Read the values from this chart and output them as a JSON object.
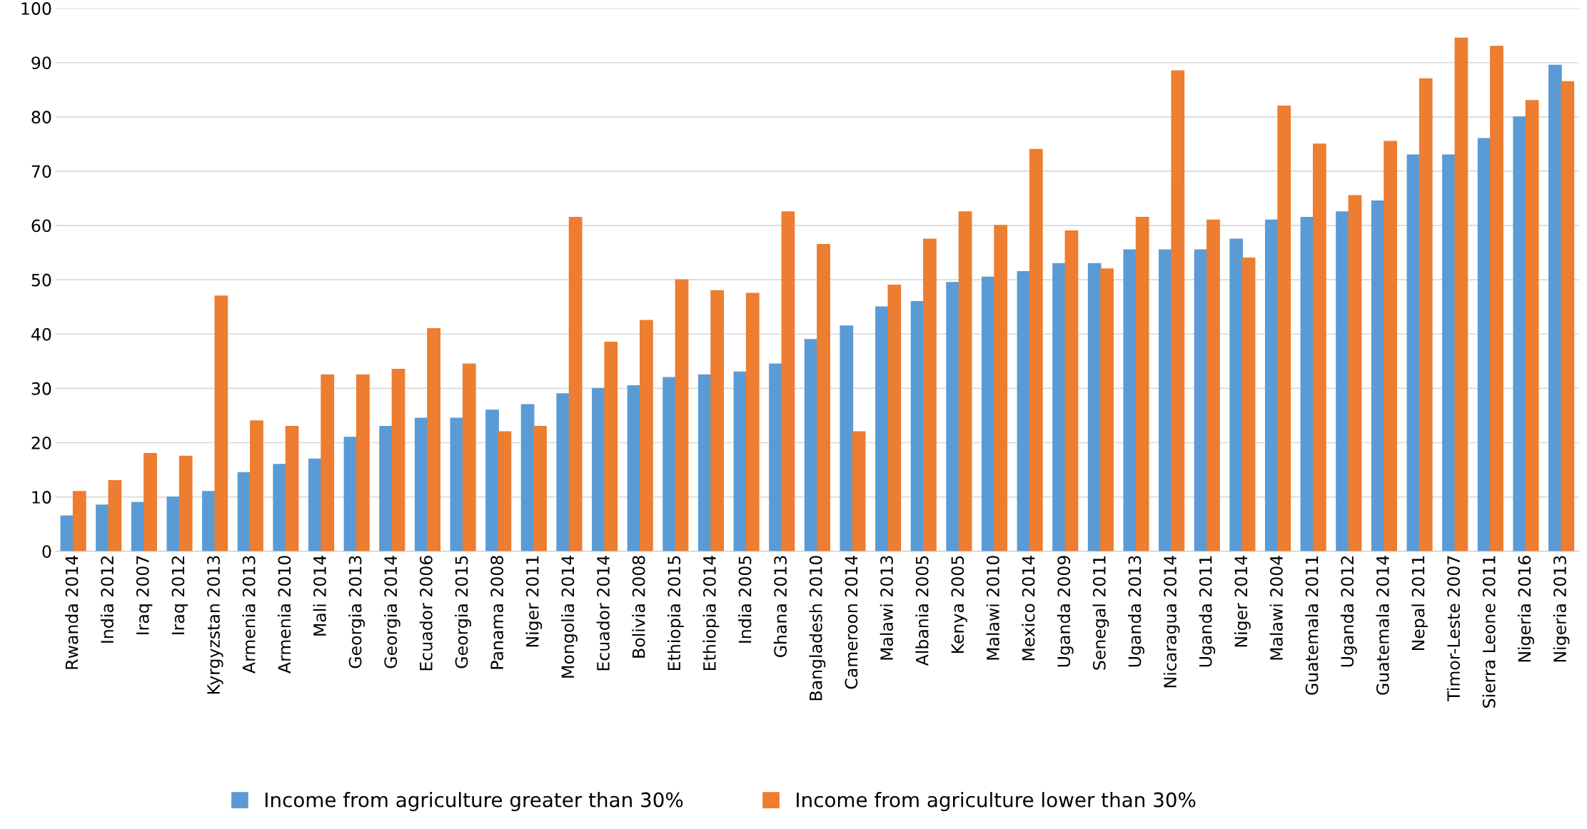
{
  "chart_data": {
    "type": "bar",
    "categories": [
      "Rwanda 2014",
      "India 2012",
      "Iraq 2007",
      "Iraq 2012",
      "Kyrgyzstan 2013",
      "Armenia 2013",
      "Armenia 2010",
      "Mali 2014",
      "Georgia 2013",
      "Georgia 2014",
      "Ecuador 2006",
      "Georgia 2015",
      "Panama 2008",
      "Niger 2011",
      "Mongolia 2014",
      "Ecuador 2014",
      "Bolivia 2008",
      "Ethiopia 2015",
      "Ethiopia 2014",
      "India 2005",
      "Ghana 2013",
      "Bangladesh 2010",
      "Cameroon 2014",
      "Malawi 2013",
      "Albania 2005",
      "Kenya 2005",
      "Malawi 2010",
      "Mexico 2014",
      "Uganda 2009",
      "Senegal 2011",
      "Uganda 2013",
      "Nicaragua 2014",
      "Uganda 2011",
      "Niger 2014",
      "Malawi 2004",
      "Guatemala 2011",
      "Uganda 2012",
      "Guatemala 2014",
      "Nepal 2011",
      "Timor-Leste 2007",
      "Sierra Leone 2011",
      "Nigeria 2016",
      "Nigeria 2013"
    ],
    "series": [
      {
        "name": "Income from agriculture greater than 30%",
        "color": "#5b9bd5",
        "values": [
          6.5,
          8.5,
          9,
          10,
          11,
          14.5,
          16,
          17,
          21,
          23,
          24.5,
          24.5,
          26,
          27,
          29,
          30,
          30.5,
          32,
          32.5,
          33,
          34.5,
          39,
          41.5,
          45,
          46,
          49.5,
          50.5,
          51.5,
          53,
          53,
          55.5,
          55.5,
          55.5,
          57.5,
          61,
          61.5,
          62.5,
          64.5,
          73,
          73,
          76,
          80,
          89.5
        ]
      },
      {
        "name": "Income from agriculture lower than 30%",
        "color": "#ed7d31",
        "values": [
          11,
          13,
          18,
          17.5,
          47,
          24,
          23,
          32.5,
          32.5,
          33.5,
          41,
          34.5,
          22,
          23,
          61.5,
          38.5,
          42.5,
          50,
          48,
          47.5,
          62.5,
          56.5,
          22,
          49,
          57.5,
          62.5,
          60,
          74,
          59,
          52,
          61.5,
          88.5,
          61,
          54,
          82,
          75,
          65.5,
          75.5,
          87,
          94.5,
          93,
          83,
          86.5
        ]
      }
    ],
    "ylim": [
      0,
      100
    ],
    "yticks": [
      0,
      10,
      20,
      30,
      40,
      50,
      60,
      70,
      80,
      90,
      100
    ],
    "grid": "y",
    "legend": "bottom"
  }
}
